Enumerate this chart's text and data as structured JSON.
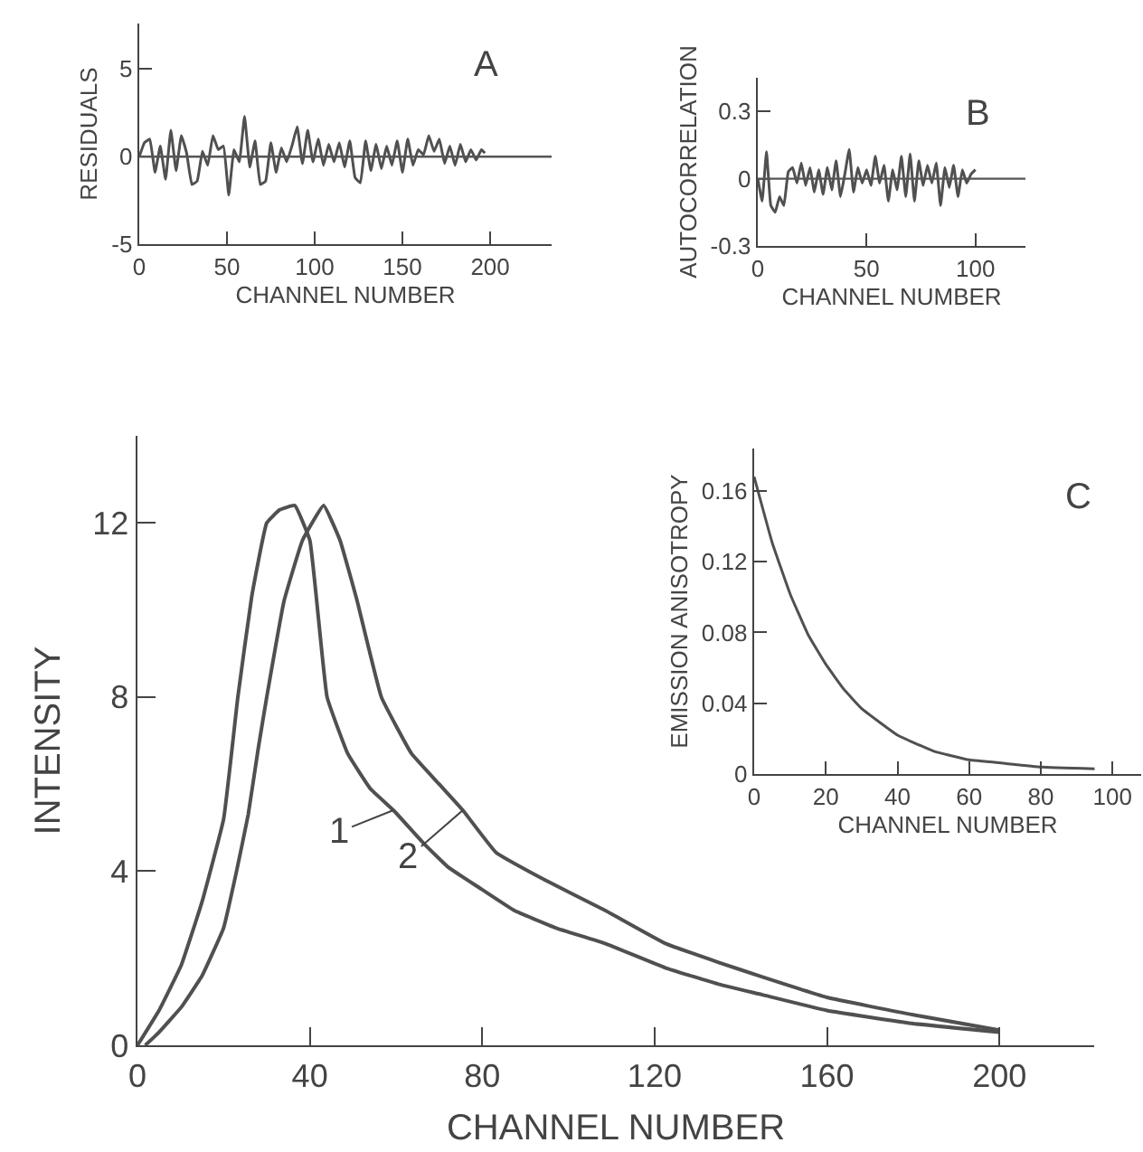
{
  "chart_data": [
    {
      "type": "line",
      "ylabel": "RESIDUALS",
      "xlabel": "CHANNEL NUMBER",
      "annotations": [
        "A"
      ],
      "xlim": [
        0,
        235
      ],
      "ylim": [
        -5,
        7.6
      ],
      "xticks": [
        0,
        50,
        100,
        150,
        200
      ],
      "yticks": [
        -5,
        0,
        5
      ],
      "grid": false,
      "marker": "none",
      "line_style": "solid",
      "ref_lines": [
        {
          "axis": "y",
          "value": 0,
          "color": "#555555"
        }
      ],
      "x": [
        0,
        3,
        6,
        9,
        12,
        15,
        18,
        21,
        24,
        27,
        30,
        33,
        36,
        39,
        42,
        45,
        48,
        51,
        54,
        57,
        60,
        63,
        66,
        69,
        72,
        75,
        78,
        81,
        84,
        87,
        90,
        93,
        96,
        99,
        102,
        105,
        108,
        111,
        114,
        117,
        120,
        123,
        126,
        129,
        132,
        135,
        138,
        141,
        144,
        147,
        150,
        153,
        156,
        159,
        162,
        165,
        168,
        171,
        174,
        177,
        180,
        183,
        186,
        189,
        192,
        195,
        197
      ],
      "series": [
        {
          "color": "#505050",
          "values": [
            0,
            0.8,
            1.0,
            -0.9,
            0.6,
            -1.3,
            1.5,
            -0.8,
            1.2,
            0.2,
            -1.6,
            -1.4,
            0.3,
            -0.5,
            1.2,
            0.4,
            0.6,
            -2.2,
            0.4,
            -0.3,
            2.3,
            -0.6,
            0.9,
            -1.6,
            -1.4,
            0.8,
            -0.9,
            0.5,
            -0.3,
            0.6,
            1.7,
            -0.4,
            1.5,
            -0.3,
            1.0,
            -0.5,
            0.7,
            -0.3,
            0.8,
            -0.6,
            0.9,
            -1.2,
            -1.5,
            0.9,
            -0.8,
            0.7,
            -0.7,
            0.6,
            -0.5,
            0.9,
            -0.9,
            1.0,
            -0.5,
            0.4,
            0.1,
            1.2,
            0.3,
            1.0,
            -0.4,
            0.6,
            -0.5,
            0.7,
            -0.3,
            0.4,
            -0.2,
            0.4,
            0.2
          ]
        }
      ]
    },
    {
      "type": "line",
      "ylabel": "AUTOCORRELATION",
      "xlabel": "CHANNEL NUMBER",
      "annotations": [
        "B"
      ],
      "xlim": [
        0,
        123
      ],
      "ylim": [
        -0.3,
        0.45
      ],
      "xticks": [
        0,
        50,
        100
      ],
      "yticks": [
        -0.3,
        0,
        0.3
      ],
      "grid": false,
      "marker": "none",
      "line_style": "solid",
      "ref_lines": [
        {
          "axis": "y",
          "value": 0,
          "color": "#555555"
        }
      ],
      "x": [
        0,
        2,
        4,
        6,
        8,
        10,
        12,
        14,
        16,
        18,
        20,
        22,
        24,
        26,
        28,
        30,
        32,
        34,
        36,
        38,
        40,
        42,
        44,
        46,
        48,
        50,
        52,
        54,
        56,
        58,
        60,
        62,
        64,
        66,
        68,
        70,
        72,
        74,
        76,
        78,
        80,
        82,
        84,
        86,
        88,
        90,
        92,
        94,
        96,
        98,
        100
      ],
      "series": [
        {
          "color": "#505050",
          "values": [
            0,
            -0.1,
            0.12,
            -0.12,
            -0.15,
            -0.08,
            -0.12,
            0.03,
            0.05,
            -0.02,
            0.07,
            -0.03,
            0.05,
            -0.06,
            0.04,
            -0.07,
            0.05,
            -0.05,
            0.08,
            -0.08,
            0.02,
            0.13,
            -0.06,
            0.05,
            -0.02,
            0.04,
            -0.03,
            0.1,
            -0.02,
            0.06,
            -0.1,
            0.04,
            -0.05,
            0.1,
            -0.08,
            0.11,
            -0.1,
            0.08,
            -0.03,
            0.06,
            -0.02,
            0.07,
            -0.12,
            0.05,
            -0.04,
            0.06,
            -0.08,
            0.04,
            -0.02,
            0.02,
            0.04
          ]
        }
      ]
    },
    {
      "type": "line",
      "ylabel": "INTENSITY",
      "xlabel": "CHANNEL NUMBER",
      "xlim": [
        0,
        222
      ],
      "ylim": [
        0,
        14
      ],
      "xticks": [
        0,
        40,
        80,
        120,
        160,
        200
      ],
      "yticks": [
        0,
        4,
        8,
        12
      ],
      "grid": false,
      "marker": "none",
      "line_style": "solid",
      "annotations": [
        {
          "text": "1",
          "x": 59.4,
          "y": 5.4
        },
        {
          "text": "2",
          "x": 75.5,
          "y": 5.4
        }
      ],
      "series": [
        {
          "color": "#505050",
          "x": [
            0,
            5,
            10.2,
            15,
            20,
            23.3,
            26.5,
            30,
            33,
            36.5,
            40,
            44,
            48.8,
            54,
            59.4,
            66.4,
            72,
            79,
            87.4,
            97,
            108.5,
            122.5,
            135,
            145,
            160,
            180,
            200
          ],
          "values": [
            0,
            0.8,
            1.85,
            3.3,
            5.2,
            8,
            10.3,
            12,
            12.3,
            12.4,
            11.6,
            8,
            6.7,
            5.9,
            5.4,
            4.64,
            4.1,
            3.64,
            3.1,
            2.7,
            2.34,
            1.78,
            1.4,
            1.16,
            0.8,
            0.5,
            0.3
          ]
        },
        {
          "color": "#505050",
          "x": [
            1.8,
            5,
            10.2,
            15,
            20,
            23,
            25.7,
            28,
            30,
            34,
            38.3,
            43.2,
            47,
            51,
            56.6,
            63.6,
            70,
            75.5,
            83.2,
            94.5,
            108.5,
            122.5,
            135,
            145,
            160,
            180,
            200
          ],
          "values": [
            0,
            0.3,
            0.88,
            1.6,
            2.7,
            4,
            5.3,
            6.8,
            8,
            10.2,
            11.6,
            12.4,
            11.6,
            10.2,
            8,
            6.7,
            6,
            5.4,
            4.43,
            3.8,
            3.1,
            2.34,
            1.9,
            1.57,
            1.1,
            0.7,
            0.35
          ]
        }
      ]
    },
    {
      "type": "line",
      "ylabel": "EMISSION ANISOTROPY",
      "xlabel": "CHANNEL NUMBER",
      "annotations": [
        "C"
      ],
      "xlim": [
        0,
        108
      ],
      "ylim": [
        0,
        0.184
      ],
      "xticks": [
        0,
        20,
        40,
        60,
        80,
        100
      ],
      "yticks": [
        0,
        0.04,
        0.08,
        0.12,
        0.16
      ],
      "grid": false,
      "marker": "none",
      "line_style": "solid",
      "x": [
        0,
        5,
        10,
        15,
        20,
        25,
        30,
        40,
        50,
        60,
        70,
        80,
        95
      ],
      "series": [
        {
          "color": "#505050",
          "values": [
            0.168,
            0.131,
            0.102,
            0.079,
            0.062,
            0.048,
            0.037,
            0.022,
            0.013,
            0.008,
            0.006,
            0.004,
            0.003
          ]
        }
      ]
    }
  ]
}
